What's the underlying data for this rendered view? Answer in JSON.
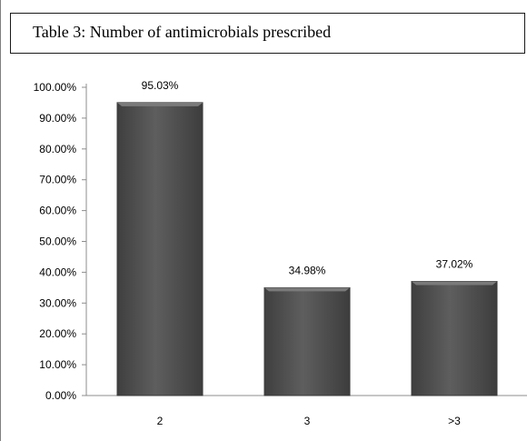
{
  "chart_data": {
    "type": "bar",
    "title": "Table 3: Number of antimicrobials prescribed",
    "xlabel": "",
    "ylabel": "",
    "categories": [
      "2",
      "3",
      ">3"
    ],
    "values": [
      95.03,
      34.98,
      37.02
    ],
    "data_labels": [
      "95.03%",
      "34.98%",
      "37.02%"
    ],
    "ylim": [
      0,
      100
    ],
    "y_ticks": [
      "0.00%",
      "10.00%",
      "20.00%",
      "30.00%",
      "40.00%",
      "50.00%",
      "60.00%",
      "70.00%",
      "80.00%",
      "90.00%",
      "100.00%"
    ],
    "grid": false,
    "legend": "none",
    "colors": {
      "bar_fill": "#555555",
      "bar_edge": "#3a3a3a",
      "axis": "#8c8c8c"
    }
  }
}
